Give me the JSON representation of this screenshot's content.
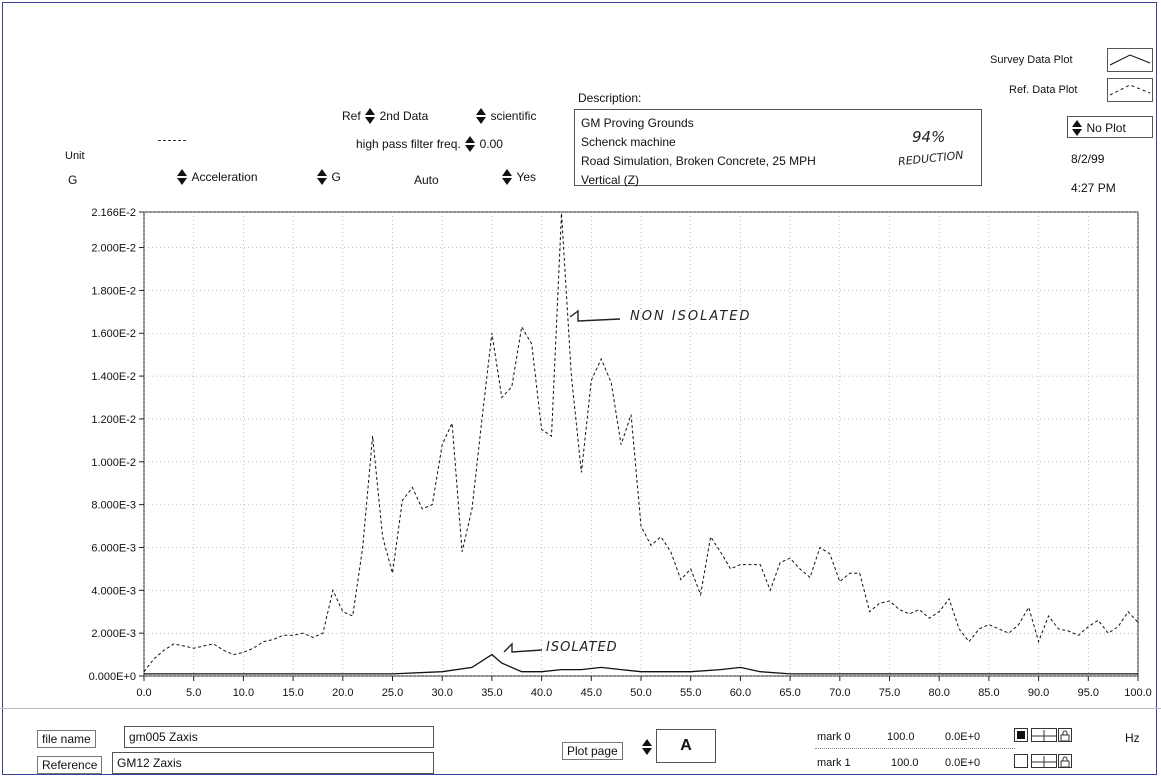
{
  "controls": {
    "unit_label": "Unit",
    "unit_value": "G",
    "quantity": "Acceleration",
    "scale_unit": "G",
    "auto_label": "Auto",
    "yes_label": "Yes",
    "ref_label": "Ref",
    "ref_value": "2nd Data",
    "format_value": "scientific",
    "hpf_label": "high pass filter freq.",
    "hpf_value": "0.00"
  },
  "description": {
    "label": "Description:",
    "lines": [
      "GM Proving Grounds",
      "Schenck machine",
      "Road Simulation, Broken Concrete, 25 MPH",
      "Vertical (Z)"
    ]
  },
  "annotations": {
    "percent": "94%",
    "reduction": "REDUCTION",
    "non_isolated": "NON ISOLATED",
    "isolated": "ISOLATED"
  },
  "legend": {
    "survey": "Survey Data Plot",
    "ref": "Ref. Data Plot",
    "no_plot": "No Plot"
  },
  "meta": {
    "date": "8/2/99",
    "time": "4:27 PM"
  },
  "footer": {
    "file_name_label": "file name",
    "file_name_value": "gm005 Zaxis",
    "reference_label": "Reference",
    "reference_value": "GM12 Zaxis",
    "plot_page_label": "Plot page",
    "plot_page_value": "A",
    "mark0_label": "mark 0",
    "mark0_x": "100.0",
    "mark0_y": "0.0E+0",
    "mark1_label": "mark 1",
    "mark1_x": "100.0",
    "mark1_y": "0.0E+0",
    "hz_label": "Hz"
  },
  "chart_data": {
    "type": "line",
    "xlabel": "Hz",
    "ylabel": "G",
    "xlim": [
      0,
      100
    ],
    "ylim": [
      0,
      0.02166
    ],
    "x_ticks": [
      "0.0",
      "5.0",
      "10.0",
      "15.0",
      "20.0",
      "25.0",
      "30.0",
      "35.0",
      "40.0",
      "45.0",
      "50.0",
      "55.0",
      "60.0",
      "65.0",
      "70.0",
      "75.0",
      "80.0",
      "85.0",
      "90.0",
      "95.0",
      "100.0"
    ],
    "y_ticks": [
      {
        "value": 0.0,
        "label": "0.000E+0"
      },
      {
        "value": 0.002,
        "label": "2.000E-3"
      },
      {
        "value": 0.004,
        "label": "4.000E-3"
      },
      {
        "value": 0.006,
        "label": "6.000E-3"
      },
      {
        "value": 0.008,
        "label": "8.000E-3"
      },
      {
        "value": 0.01,
        "label": "1.000E-2"
      },
      {
        "value": 0.012,
        "label": "1.200E-2"
      },
      {
        "value": 0.014,
        "label": "1.400E-2"
      },
      {
        "value": 0.016,
        "label": "1.600E-2"
      },
      {
        "value": 0.018,
        "label": "1.800E-2"
      },
      {
        "value": 0.02,
        "label": "2.000E-2"
      },
      {
        "value": 0.02166,
        "label": "2.166E-2"
      }
    ],
    "grid": true,
    "legend": "top-right",
    "series": [
      {
        "name": "Ref. Data Plot",
        "style": "dashed",
        "x": [
          0,
          1,
          2,
          3,
          4,
          5,
          6,
          7,
          8,
          9,
          10,
          11,
          12,
          13,
          14,
          15,
          16,
          17,
          18,
          19,
          20,
          21,
          22,
          23,
          24,
          25,
          26,
          27,
          28,
          29,
          30,
          31,
          32,
          33,
          34,
          35,
          36,
          37,
          38,
          39,
          40,
          41,
          42,
          43,
          44,
          45,
          46,
          47,
          48,
          49,
          50,
          51,
          52,
          53,
          54,
          55,
          56,
          57,
          58,
          59,
          60,
          61,
          62,
          63,
          64,
          65,
          66,
          67,
          68,
          69,
          70,
          71,
          72,
          73,
          74,
          75,
          76,
          77,
          78,
          79,
          80,
          81,
          82,
          83,
          84,
          85,
          86,
          87,
          88,
          89,
          90,
          91,
          92,
          93,
          94,
          95,
          96,
          97,
          98,
          99,
          100
        ],
        "y": [
          0.0002,
          0.0008,
          0.0012,
          0.0015,
          0.0014,
          0.0013,
          0.0014,
          0.0015,
          0.0012,
          0.001,
          0.0011,
          0.0013,
          0.0016,
          0.0017,
          0.0019,
          0.0019,
          0.002,
          0.0018,
          0.002,
          0.004,
          0.003,
          0.0028,
          0.006,
          0.0112,
          0.0065,
          0.0048,
          0.0082,
          0.0088,
          0.0078,
          0.008,
          0.0108,
          0.0118,
          0.0058,
          0.0078,
          0.012,
          0.016,
          0.013,
          0.0135,
          0.0163,
          0.0155,
          0.0115,
          0.0112,
          0.0216,
          0.014,
          0.0095,
          0.0138,
          0.0148,
          0.0137,
          0.0108,
          0.0122,
          0.007,
          0.0061,
          0.0065,
          0.0058,
          0.0045,
          0.005,
          0.0038,
          0.0065,
          0.0058,
          0.005,
          0.0052,
          0.0052,
          0.0052,
          0.004,
          0.0053,
          0.0055,
          0.005,
          0.0046,
          0.006,
          0.0057,
          0.0044,
          0.0048,
          0.0048,
          0.003,
          0.0034,
          0.0035,
          0.0031,
          0.0029,
          0.0031,
          0.0027,
          0.003,
          0.0036,
          0.0022,
          0.0016,
          0.0022,
          0.0024,
          0.0022,
          0.002,
          0.0024,
          0.0032,
          0.0016,
          0.0028,
          0.0022,
          0.0021,
          0.0019,
          0.0023,
          0.0026,
          0.002,
          0.0023,
          0.003,
          0.0025
        ]
      },
      {
        "name": "Survey Data Plot",
        "style": "solid",
        "x": [
          0,
          5,
          10,
          15,
          20,
          25,
          30,
          33,
          35,
          36,
          38,
          40,
          42,
          44,
          46,
          48,
          50,
          52,
          55,
          58,
          60,
          62,
          65,
          70,
          75,
          80,
          85,
          90,
          95,
          100
        ],
        "y": [
          0.0001,
          0.0001,
          0.0001,
          0.0001,
          0.0001,
          0.0001,
          0.0002,
          0.0004,
          0.001,
          0.0006,
          0.0002,
          0.0002,
          0.0003,
          0.0003,
          0.0004,
          0.0003,
          0.0002,
          0.0002,
          0.0002,
          0.0003,
          0.0004,
          0.0002,
          0.0001,
          0.0001,
          0.0001,
          0.0001,
          0.0001,
          0.0001,
          0.0001,
          0.0001
        ]
      }
    ]
  }
}
